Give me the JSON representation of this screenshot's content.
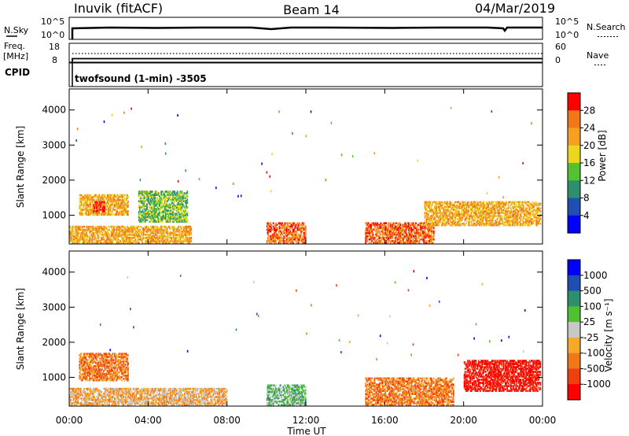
{
  "header": {
    "station": "Inuvik (fitACF)",
    "beam": "Beam 14",
    "date": "04/Mar/2019"
  },
  "strip_nsky": {
    "left_label": "N.Sky",
    "left_ticks": [
      "10^5",
      "10^0"
    ],
    "right_label": "N.Search",
    "right_ticks": [
      "10^5",
      "10^0"
    ]
  },
  "strip_freq": {
    "left_label_1": "Freq.",
    "left_label_2": "[MHz]",
    "left_ticks": [
      "18",
      "8"
    ],
    "right_label": "Nave",
    "right_ticks": [
      "60",
      "0"
    ],
    "cpid_label": "CPID",
    "program": "twofsound (1-min) -3505"
  },
  "x_axis": {
    "label": "Time UT",
    "ticks": [
      "00:00",
      "04:00",
      "08:00",
      "12:00",
      "16:00",
      "20:00",
      "00:00"
    ]
  },
  "chart_data": [
    {
      "type": "heatmap",
      "name": "power",
      "ylabel": "Slant Range [km]",
      "yticks": [
        1000,
        2000,
        3000,
        4000
      ],
      "ylim": [
        180,
        4600
      ],
      "xlim_hours": [
        0,
        24
      ],
      "colorbar_label": "Power [dB]",
      "colorbar_ticks": [
        "28",
        "24",
        "20",
        "16",
        "12",
        "8",
        "4"
      ],
      "colorbar_colors": [
        "#0000ff",
        "#1f4fb0",
        "#2e8f6e",
        "#55c030",
        "#e8d820",
        "#f5a020",
        "#f07818",
        "#ff0000"
      ],
      "ranges_km": [
        {
          "t0": 0.0,
          "t1": 6.2,
          "r0": 200,
          "r1": 700,
          "level": 5
        },
        {
          "t0": 0.5,
          "t1": 3.0,
          "r0": 1000,
          "r1": 1600,
          "level": 5
        },
        {
          "t0": 1.2,
          "t1": 1.8,
          "r0": 1100,
          "r1": 1400,
          "level": 7
        },
        {
          "t0": 3.5,
          "t1": 6.0,
          "r0": 800,
          "r1": 1700,
          "level": 3
        },
        {
          "t0": 10.0,
          "t1": 12.0,
          "r0": 200,
          "r1": 800,
          "level": 6
        },
        {
          "t0": 15.0,
          "t1": 18.5,
          "r0": 200,
          "r1": 800,
          "level": 6
        },
        {
          "t0": 18.0,
          "t1": 23.9,
          "r0": 700,
          "r1": 1400,
          "level": 5
        }
      ]
    },
    {
      "type": "heatmap",
      "name": "velocity",
      "ylabel": "Slant Range [km]",
      "yticks": [
        1000,
        2000,
        3000,
        4000
      ],
      "ylim": [
        180,
        4600
      ],
      "xlim_hours": [
        0,
        24
      ],
      "colorbar_label": "Velocity [m s⁻¹]",
      "colorbar_ticks": [
        "1000",
        "500",
        "100",
        "25",
        "-25",
        "-100",
        "-500",
        "-1000"
      ],
      "colorbar_colors": [
        "#ff0000",
        "#f04010",
        "#f07818",
        "#f8a828",
        "#c8c8c8",
        "#50c030",
        "#2e8f6e",
        "#1f4fb0",
        "#0000ff"
      ],
      "ranges_km": [
        {
          "t0": 0.5,
          "t1": 3.0,
          "r0": 900,
          "r1": 1700,
          "level": 2
        },
        {
          "t0": 0.0,
          "t1": 8.0,
          "r0": 200,
          "r1": 700,
          "level": 3
        },
        {
          "t0": 10.0,
          "t1": 12.0,
          "r0": 200,
          "r1": 800,
          "level": 5
        },
        {
          "t0": 15.0,
          "t1": 19.5,
          "r0": 200,
          "r1": 1000,
          "level": 2
        },
        {
          "t0": 20.0,
          "t1": 23.9,
          "r0": 600,
          "r1": 1500,
          "level": 0
        }
      ]
    }
  ]
}
